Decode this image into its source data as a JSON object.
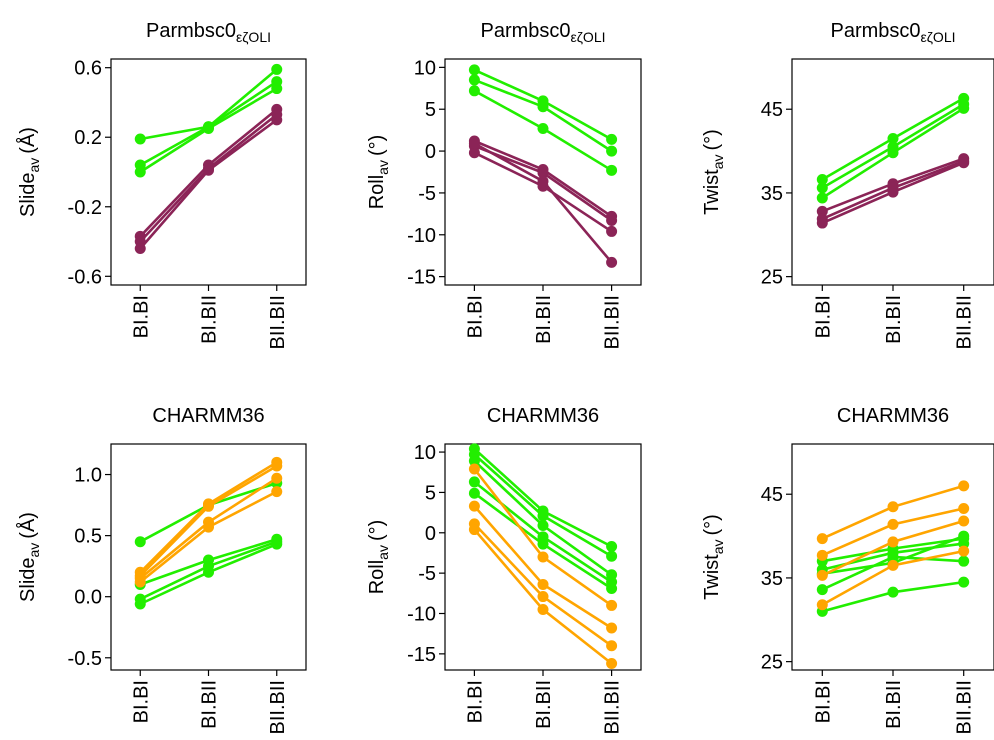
{
  "colors": {
    "green": "#22ee00",
    "purple": "#8b2457",
    "orange": "#ffa500"
  },
  "chart_data": [
    {
      "type": "line",
      "title_main": "Parmbsc0",
      "title_sub": "εζOLI",
      "ylabel_main": "Slide",
      "ylabel_sub": "av",
      "ylabel_unit": "(Å)",
      "categories": [
        "BI.BI",
        "BI.BII",
        "BII.BII"
      ],
      "ylim": [
        -0.65,
        0.65
      ],
      "yticks": [
        -0.6,
        -0.2,
        0.2,
        0.6
      ],
      "ytick_labels": [
        "-0.6",
        "-0.2",
        "0.2",
        "0.6"
      ],
      "grid": false,
      "series": [
        {
          "color": "green",
          "values": [
            0.19,
            0.26,
            0.59
          ]
        },
        {
          "color": "green",
          "values": [
            0.04,
            0.26,
            0.52
          ]
        },
        {
          "color": "green",
          "values": [
            0.0,
            0.25,
            0.48
          ]
        },
        {
          "color": "purple",
          "values": [
            -0.37,
            0.04,
            0.36
          ]
        },
        {
          "color": "purple",
          "values": [
            -0.4,
            0.02,
            0.33
          ]
        },
        {
          "color": "purple",
          "values": [
            -0.44,
            0.01,
            0.3
          ]
        }
      ]
    },
    {
      "type": "line",
      "title_main": "Parmbsc0",
      "title_sub": "εζOLI",
      "ylabel_main": "Roll",
      "ylabel_sub": "av",
      "ylabel_unit": "(°)",
      "categories": [
        "BI.BI",
        "BI.BII",
        "BII.BII"
      ],
      "ylim": [
        -16,
        11
      ],
      "yticks": [
        -15,
        -10,
        -5,
        0,
        5,
        10
      ],
      "ytick_labels": [
        "-15",
        "-10",
        "-5",
        "0",
        "5",
        "10"
      ],
      "grid": false,
      "series": [
        {
          "color": "green",
          "values": [
            9.7,
            6.0,
            1.4
          ]
        },
        {
          "color": "green",
          "values": [
            8.5,
            5.3,
            0.0
          ]
        },
        {
          "color": "green",
          "values": [
            7.2,
            2.7,
            -2.3
          ]
        },
        {
          "color": "purple",
          "values": [
            1.2,
            -2.2,
            -7.8
          ]
        },
        {
          "color": "purple",
          "values": [
            0.6,
            -2.6,
            -8.3
          ]
        },
        {
          "color": "purple",
          "values": [
            -0.2,
            -4.2,
            -9.6
          ]
        },
        {
          "color": "purple",
          "values": [
            0.9,
            -3.6,
            -13.3
          ]
        }
      ]
    },
    {
      "type": "line",
      "title_main": "Parmbsc0",
      "title_sub": "εζOLI",
      "ylabel_main": "Twist",
      "ylabel_sub": "av",
      "ylabel_unit": "(°)",
      "categories": [
        "BI.BI",
        "BI.BII",
        "BII.BII"
      ],
      "ylim": [
        24,
        51
      ],
      "yticks": [
        25,
        35,
        45
      ],
      "ytick_labels": [
        "25",
        "35",
        "45"
      ],
      "grid": false,
      "series": [
        {
          "color": "green",
          "values": [
            36.6,
            41.5,
            46.3
          ]
        },
        {
          "color": "green",
          "values": [
            35.6,
            40.5,
            45.6
          ]
        },
        {
          "color": "green",
          "values": [
            34.4,
            39.8,
            45.1
          ]
        },
        {
          "color": "purple",
          "values": [
            32.8,
            36.1,
            39.1
          ]
        },
        {
          "color": "purple",
          "values": [
            31.9,
            35.6,
            38.8
          ]
        },
        {
          "color": "purple",
          "values": [
            31.4,
            35.1,
            38.6
          ]
        }
      ]
    },
    {
      "type": "line",
      "title_main": "CHARMM36",
      "title_sub": "",
      "ylabel_main": "Slide",
      "ylabel_sub": "av",
      "ylabel_unit": "(Å)",
      "categories": [
        "BI.BI",
        "BI.BII",
        "BII.BII"
      ],
      "ylim": [
        -0.6,
        1.25
      ],
      "yticks": [
        -0.5,
        0.0,
        0.5,
        1.0
      ],
      "ytick_labels": [
        "-0.5",
        "0.0",
        "0.5",
        "1.0"
      ],
      "grid": false,
      "series": [
        {
          "color": "green",
          "values": [
            0.45,
            0.75,
            0.93
          ]
        },
        {
          "color": "green",
          "values": [
            0.1,
            0.3,
            0.47
          ]
        },
        {
          "color": "green",
          "values": [
            -0.02,
            0.25,
            0.45
          ]
        },
        {
          "color": "green",
          "values": [
            -0.06,
            0.2,
            0.43
          ]
        },
        {
          "color": "orange",
          "values": [
            0.2,
            0.76,
            1.1
          ]
        },
        {
          "color": "orange",
          "values": [
            0.17,
            0.74,
            1.07
          ]
        },
        {
          "color": "orange",
          "values": [
            0.15,
            0.61,
            0.97
          ]
        },
        {
          "color": "orange",
          "values": [
            0.12,
            0.57,
            0.86
          ]
        }
      ]
    },
    {
      "type": "line",
      "title_main": "CHARMM36",
      "title_sub": "",
      "ylabel_main": "Roll",
      "ylabel_sub": "av",
      "ylabel_unit": "(°)",
      "categories": [
        "BI.BI",
        "BI.BII",
        "BII.BII"
      ],
      "ylim": [
        -17,
        11
      ],
      "yticks": [
        -15,
        -10,
        -5,
        0,
        5,
        10
      ],
      "ytick_labels": [
        "-15",
        "-10",
        "-5",
        "0",
        "5",
        "10"
      ],
      "grid": false,
      "series": [
        {
          "color": "green",
          "values": [
            10.4,
            2.7,
            -1.7
          ]
        },
        {
          "color": "green",
          "values": [
            9.7,
            2.1,
            -2.9
          ]
        },
        {
          "color": "green",
          "values": [
            8.9,
            0.9,
            -5.2
          ]
        },
        {
          "color": "green",
          "values": [
            6.3,
            -0.5,
            -6.1
          ]
        },
        {
          "color": "green",
          "values": [
            4.9,
            -1.4,
            -6.9
          ]
        },
        {
          "color": "orange",
          "values": [
            7.9,
            -3.0,
            -9.0
          ]
        },
        {
          "color": "orange",
          "values": [
            3.3,
            -6.4,
            -11.8
          ]
        },
        {
          "color": "orange",
          "values": [
            1.1,
            -7.9,
            -14.0
          ]
        },
        {
          "color": "orange",
          "values": [
            0.4,
            -9.5,
            -16.2
          ]
        }
      ]
    },
    {
      "type": "line",
      "title_main": "CHARMM36",
      "title_sub": "",
      "ylabel_main": "Twist",
      "ylabel_sub": "av",
      "ylabel_unit": "(°)",
      "categories": [
        "BI.BI",
        "BI.BII",
        "BII.BII"
      ],
      "ylim": [
        24,
        51
      ],
      "yticks": [
        25,
        35,
        45
      ],
      "ytick_labels": [
        "25",
        "35",
        "45"
      ],
      "grid": false,
      "series": [
        {
          "color": "green",
          "values": [
            37.0,
            38.5,
            39.7
          ]
        },
        {
          "color": "green",
          "values": [
            36.0,
            38.0,
            39.1
          ]
        },
        {
          "color": "green",
          "values": [
            35.5,
            36.8,
            40.0
          ]
        },
        {
          "color": "green",
          "values": [
            33.6,
            37.5,
            37.0
          ]
        },
        {
          "color": "green",
          "values": [
            31.0,
            33.3,
            34.5
          ]
        },
        {
          "color": "orange",
          "values": [
            39.7,
            43.5,
            46.0
          ]
        },
        {
          "color": "orange",
          "values": [
            37.7,
            41.4,
            43.3
          ]
        },
        {
          "color": "orange",
          "values": [
            35.3,
            39.3,
            41.8
          ]
        },
        {
          "color": "orange",
          "values": [
            31.8,
            36.5,
            38.2
          ]
        }
      ]
    }
  ]
}
